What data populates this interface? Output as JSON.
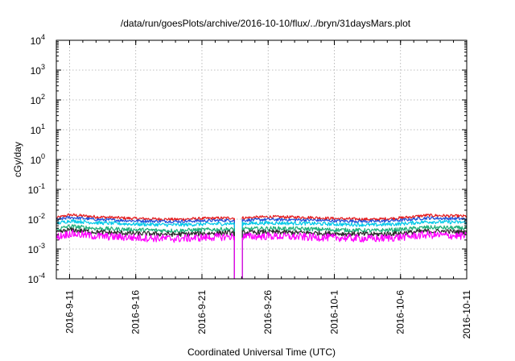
{
  "chart_data": {
    "type": "line",
    "title": "/data/run/goesPlots/archive/2016-10-10/flux/../bryn/31daysMars.plot",
    "xlabel": "Coordinated Universal Time (UTC)",
    "ylabel": "cGy/day",
    "yscale": "log",
    "ylim": [
      0.0001,
      10000
    ],
    "y_ticks": [
      {
        "base": "10",
        "exp": "-4"
      },
      {
        "base": "10",
        "exp": "-3"
      },
      {
        "base": "10",
        "exp": "-2"
      },
      {
        "base": "10",
        "exp": "-1"
      },
      {
        "base": "10",
        "exp": "0"
      },
      {
        "base": "10",
        "exp": "1"
      },
      {
        "base": "10",
        "exp": "2"
      },
      {
        "base": "10",
        "exp": "3"
      },
      {
        "base": "10",
        "exp": "4"
      }
    ],
    "xlim": [
      "2016-09-10",
      "2016-10-11"
    ],
    "x_ticks": [
      "2016-9-11",
      "2016-9-16",
      "2016-9-21",
      "2016-9-26",
      "2016-10-1",
      "2016-10-6",
      "2016-10-11"
    ],
    "grid": true,
    "data_gap": [
      "2016-09-23",
      "2016-09-24"
    ],
    "series": [
      {
        "color": "#e41a1c",
        "x": [
          "2016-09-10",
          "2016-09-11",
          "2016-09-13",
          "2016-09-16",
          "2016-09-19",
          "2016-09-21",
          "2016-09-23",
          "2016-09-24",
          "2016-09-26",
          "2016-09-29",
          "2016-10-01",
          "2016-10-04",
          "2016-10-06",
          "2016-10-08",
          "2016-10-11"
        ],
        "values": [
          0.011,
          0.014,
          0.012,
          0.0105,
          0.0098,
          0.0105,
          0.011,
          0.011,
          0.012,
          0.0115,
          0.0105,
          0.0098,
          0.011,
          0.0135,
          0.0125
        ]
      },
      {
        "color": "#1f4fd8",
        "x": [
          "2016-09-10",
          "2016-09-11",
          "2016-09-13",
          "2016-09-16",
          "2016-09-19",
          "2016-09-21",
          "2016-09-23",
          "2016-09-24",
          "2016-09-26",
          "2016-09-29",
          "2016-10-01",
          "2016-10-04",
          "2016-10-06",
          "2016-10-08",
          "2016-10-11"
        ],
        "values": [
          0.0095,
          0.0115,
          0.0098,
          0.0088,
          0.0084,
          0.0088,
          0.0092,
          0.0092,
          0.0098,
          0.0094,
          0.0088,
          0.0084,
          0.0092,
          0.011,
          0.0102
        ]
      },
      {
        "color": "#00c8e8",
        "x": [
          "2016-09-10",
          "2016-09-11",
          "2016-09-13",
          "2016-09-16",
          "2016-09-19",
          "2016-09-21",
          "2016-09-23",
          "2016-09-24",
          "2016-09-26",
          "2016-09-29",
          "2016-10-01",
          "2016-10-04",
          "2016-10-06",
          "2016-10-08",
          "2016-10-11"
        ],
        "values": [
          0.0072,
          0.0088,
          0.0076,
          0.0068,
          0.0064,
          0.0068,
          0.0071,
          0.0071,
          0.0075,
          0.0072,
          0.0068,
          0.0064,
          0.007,
          0.0082,
          0.0078
        ]
      },
      {
        "color": "#1fae7a",
        "x": [
          "2016-09-10",
          "2016-09-11",
          "2016-09-13",
          "2016-09-16",
          "2016-09-19",
          "2016-09-21",
          "2016-09-23",
          "2016-09-24",
          "2016-09-26",
          "2016-09-29",
          "2016-10-01",
          "2016-10-04",
          "2016-10-06",
          "2016-10-08",
          "2016-10-11"
        ],
        "values": [
          0.0045,
          0.0058,
          0.0049,
          0.0044,
          0.0041,
          0.0044,
          0.0046,
          0.0046,
          0.0049,
          0.0047,
          0.0044,
          0.0041,
          0.0045,
          0.0053,
          0.005
        ]
      },
      {
        "color": "#2a2a2a",
        "x": [
          "2016-09-10",
          "2016-09-11",
          "2016-09-13",
          "2016-09-16",
          "2016-09-19",
          "2016-09-21",
          "2016-09-23",
          "2016-09-24",
          "2016-09-26",
          "2016-09-29",
          "2016-10-01",
          "2016-10-04",
          "2016-10-06",
          "2016-10-08",
          "2016-10-11"
        ],
        "values": [
          0.0034,
          0.0044,
          0.0037,
          0.0033,
          0.0031,
          0.0033,
          0.0035,
          0.0035,
          0.0037,
          0.0035,
          0.0033,
          0.0031,
          0.0034,
          0.004,
          0.0037
        ]
      },
      {
        "color": "#ff00ff",
        "x": [
          "2016-09-10",
          "2016-09-11",
          "2016-09-13",
          "2016-09-16",
          "2016-09-19",
          "2016-09-21",
          "2016-09-23",
          "2016-09-24",
          "2016-09-26",
          "2016-09-29",
          "2016-10-01",
          "2016-10-04",
          "2016-10-06",
          "2016-10-08",
          "2016-10-11"
        ],
        "values": [
          0.0025,
          0.0033,
          0.0027,
          0.0024,
          0.0022,
          0.0024,
          0.0026,
          0.0026,
          0.0027,
          0.0025,
          0.0024,
          0.0022,
          0.0025,
          0.003,
          0.0027
        ]
      }
    ]
  }
}
